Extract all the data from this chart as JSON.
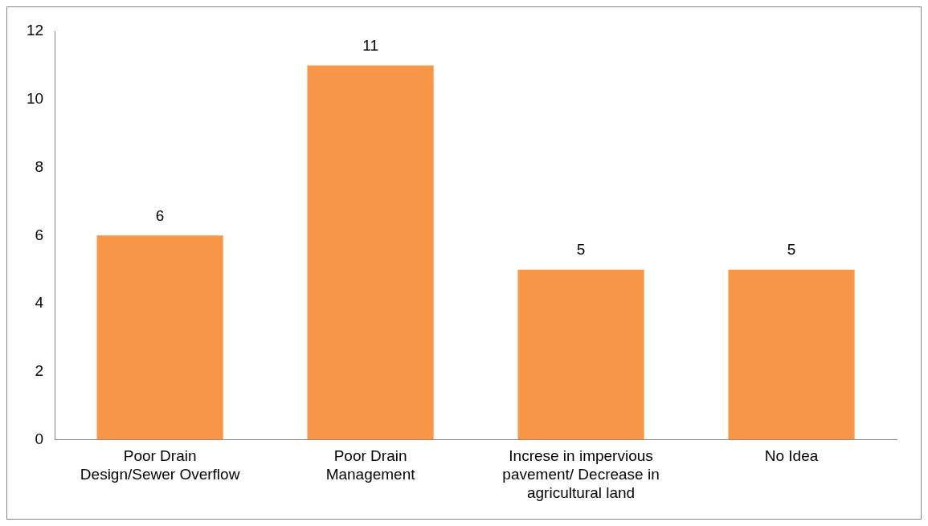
{
  "chart_data": {
    "type": "bar",
    "categories": [
      "Poor Drain\nDesign/Sewer Overflow",
      "Poor Drain\nManagement",
      "Increse in impervious\npavement/ Decrease in\nagricultural land",
      "No Idea"
    ],
    "values": [
      6,
      11,
      5,
      5
    ],
    "color": "#f79646",
    "ylim": [
      0,
      12
    ],
    "yticks": [
      0,
      2,
      4,
      6,
      8,
      10,
      12
    ],
    "grid": false,
    "legend": false,
    "data_labels": true
  }
}
